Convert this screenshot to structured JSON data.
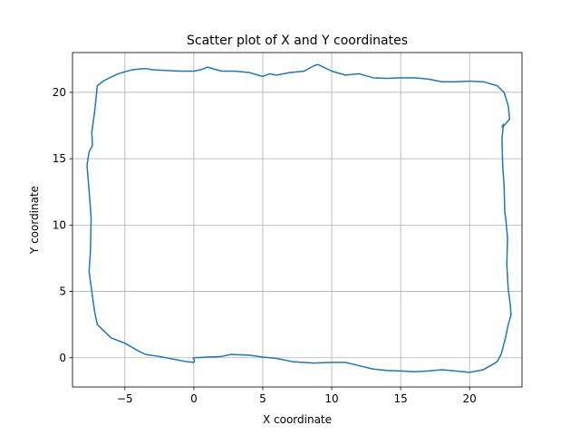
{
  "chart_data": {
    "type": "line",
    "title": "Scatter plot of X and Y coordinates",
    "xlabel": "X coordinate",
    "ylabel": "Y coordinate",
    "xlim": [
      -8.8,
      23.8
    ],
    "ylim": [
      -2.2,
      23.0
    ],
    "xticks": [
      -5,
      0,
      5,
      10,
      15,
      20
    ],
    "yticks": [
      0,
      5,
      10,
      15,
      20
    ],
    "grid": true,
    "line_color": "#1f77b4",
    "series": [
      {
        "x": [
          0,
          2,
          2.7,
          4,
          5,
          6,
          7.2,
          8.7,
          10,
          11,
          12,
          13,
          14,
          15,
          16,
          17,
          18,
          19,
          20,
          21,
          22,
          22.3,
          22.6,
          22.8,
          23,
          22.95,
          22.8,
          22.7,
          22.75,
          22.65,
          22.55,
          22.5,
          22.4,
          22.35,
          22.45,
          22.35,
          22.5,
          22.75,
          22.9,
          22.8,
          22.5,
          22.0,
          21.0,
          20.0,
          19.0,
          18.0,
          17.0,
          16.0,
          15.0,
          14.0,
          13.0,
          12.0,
          11.0,
          10.0,
          9.0,
          8.7,
          8.0,
          7.0,
          6.0,
          5.5,
          5.0,
          4.0,
          3.0,
          2.0,
          1.0,
          0.5,
          0.0,
          -0.5,
          -1.0,
          -2.0,
          -3.0,
          -3.5,
          -4.5,
          -5.5,
          -6.5,
          -7.0,
          -7.1,
          -7.2,
          -7.4,
          -7.35,
          -7.6,
          -7.75,
          -7.55,
          -7.45,
          -7.5,
          -7.6,
          -7.4,
          -7.2,
          -7.0,
          -6.0,
          -5.0,
          -4.0,
          -3.5,
          -2.5,
          -1.5,
          -0.5,
          0.0,
          0.05,
          0.0,
          -0.05,
          0.0
        ],
        "y": [
          0,
          0.1,
          0.25,
          0.2,
          0.05,
          -0.05,
          -0.3,
          -0.4,
          -0.35,
          -0.35,
          -0.6,
          -0.85,
          -0.95,
          -1.0,
          -1.05,
          -1.0,
          -0.9,
          -1.0,
          -1.1,
          -0.9,
          -0.3,
          0.3,
          1.5,
          2.5,
          3.2,
          4.0,
          5.2,
          7.0,
          9.0,
          10.2,
          11.0,
          13.0,
          14.5,
          16.5,
          17.6,
          17.4,
          17.5,
          17.8,
          18.0,
          19.0,
          20.0,
          20.5,
          20.8,
          20.85,
          20.8,
          20.8,
          21.0,
          21.1,
          21.1,
          21.05,
          21.1,
          21.4,
          21.3,
          21.6,
          22.1,
          22.0,
          21.6,
          21.5,
          21.3,
          21.4,
          21.2,
          21.5,
          21.6,
          21.6,
          21.9,
          21.7,
          21.6,
          21.6,
          21.6,
          21.65,
          21.7,
          21.8,
          21.7,
          21.4,
          20.9,
          20.5,
          19.5,
          18.5,
          17.0,
          16.0,
          15.5,
          14.5,
          12.0,
          10.5,
          8.0,
          6.5,
          5.0,
          3.5,
          2.5,
          1.5,
          1.1,
          0.5,
          0.25,
          0.1,
          -0.1,
          -0.3,
          -0.35,
          -0.25,
          -0.1,
          -0.05,
          0.0
        ]
      }
    ]
  }
}
